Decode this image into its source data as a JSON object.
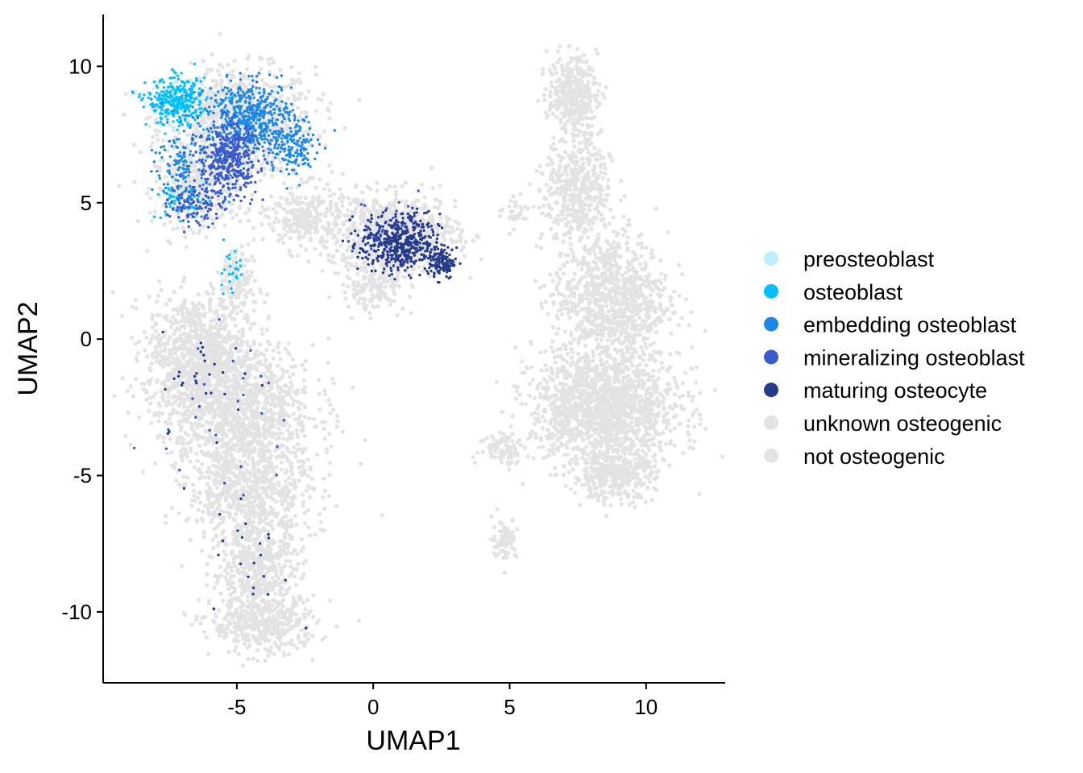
{
  "chart_data": {
    "type": "scatter",
    "title": "",
    "xlabel": "UMAP1",
    "ylabel": "UMAP2",
    "xlim": [
      -9.9,
      12.9
    ],
    "ylim": [
      -12.6,
      11.9
    ],
    "xticks": [
      -5,
      0,
      5,
      10
    ],
    "xtick_labels": [
      "-5",
      "0",
      "5",
      "10"
    ],
    "yticks": [
      10,
      5,
      0,
      -5,
      -10
    ],
    "ytick_labels": [
      "10",
      "5",
      "0",
      "-5",
      "-10"
    ],
    "grid": false,
    "legend_position": "right",
    "series": [
      {
        "name": "preosteoblast",
        "color": "#bfeeff",
        "clusters": [
          {
            "cx": -7.2,
            "cy": 8.6,
            "sx": 0.7,
            "sy": 0.6,
            "n": 40
          },
          {
            "cx": -5.0,
            "cy": 2.0,
            "sx": 0.4,
            "sy": 0.8,
            "n": 10
          }
        ]
      },
      {
        "name": "osteoblast",
        "color": "#00bfff",
        "clusters": [
          {
            "cx": -7.2,
            "cy": 8.7,
            "sx": 0.9,
            "sy": 0.7,
            "n": 320
          },
          {
            "cx": -7.0,
            "cy": 5.0,
            "sx": 0.8,
            "sy": 0.5,
            "n": 60
          },
          {
            "cx": -5.3,
            "cy": 2.5,
            "sx": 0.4,
            "sy": 0.8,
            "n": 25
          }
        ]
      },
      {
        "name": "embedding osteoblast",
        "color": "#1e88e5",
        "clusters": [
          {
            "cx": -4.5,
            "cy": 8.2,
            "sx": 1.3,
            "sy": 1.0,
            "n": 520
          },
          {
            "cx": -3.0,
            "cy": 7.0,
            "sx": 0.8,
            "sy": 0.9,
            "n": 160
          },
          {
            "cx": -7.0,
            "cy": 6.5,
            "sx": 0.8,
            "sy": 1.2,
            "n": 140
          }
        ]
      },
      {
        "name": "mineralizing osteoblast",
        "color": "#3a5bcc",
        "clusters": [
          {
            "cx": -5.3,
            "cy": 6.6,
            "sx": 0.9,
            "sy": 1.1,
            "n": 420
          },
          {
            "cx": -6.5,
            "cy": 5.0,
            "sx": 0.8,
            "sy": 0.7,
            "n": 120
          },
          {
            "cx": 0.5,
            "cy": 4.0,
            "sx": 1.0,
            "sy": 1.0,
            "n": 60
          },
          {
            "cx": -5.5,
            "cy": -3.0,
            "sx": 2.0,
            "sy": 2.5,
            "n": 25
          }
        ]
      },
      {
        "name": "maturing osteocyte",
        "color": "#263b8a",
        "clusters": [
          {
            "cx": 1.0,
            "cy": 3.5,
            "sx": 1.2,
            "sy": 0.9,
            "n": 480
          },
          {
            "cx": 2.5,
            "cy": 2.8,
            "sx": 0.4,
            "sy": 0.5,
            "n": 120
          },
          {
            "cx": -6.0,
            "cy": -1.5,
            "sx": 1.5,
            "sy": 1.5,
            "n": 30
          },
          {
            "cx": -4.5,
            "cy": -8.0,
            "sx": 1.2,
            "sy": 2.0,
            "n": 22
          }
        ]
      },
      {
        "name": "unknown osteogenic",
        "color": "#e3e3e3",
        "clusters": []
      },
      {
        "name": "not osteogenic",
        "color": "#e3e3e3",
        "clusters": []
      }
    ],
    "background_regions": [
      {
        "cx": -5.0,
        "cy": 8.0,
        "sx": 1.9,
        "sy": 1.3,
        "n": 900
      },
      {
        "cx": -6.5,
        "cy": 5.5,
        "sx": 1.0,
        "sy": 0.9,
        "n": 300
      },
      {
        "cx": -5.0,
        "cy": 2.0,
        "sx": 0.5,
        "sy": 1.2,
        "n": 160
      },
      {
        "cx": -6.5,
        "cy": -0.5,
        "sx": 1.2,
        "sy": 1.4,
        "n": 800
      },
      {
        "cx": -5.0,
        "cy": -2.5,
        "sx": 1.9,
        "sy": 1.6,
        "n": 1100
      },
      {
        "cx": -4.5,
        "cy": -5.5,
        "sx": 1.5,
        "sy": 1.4,
        "n": 700
      },
      {
        "cx": -4.3,
        "cy": -8.5,
        "sx": 1.1,
        "sy": 1.3,
        "n": 500
      },
      {
        "cx": -4.0,
        "cy": -10.5,
        "sx": 1.3,
        "sy": 0.7,
        "n": 350
      },
      {
        "cx": 0.7,
        "cy": 3.8,
        "sx": 1.6,
        "sy": 1.0,
        "n": 800
      },
      {
        "cx": -2.5,
        "cy": 4.5,
        "sx": 0.9,
        "sy": 0.8,
        "n": 250
      },
      {
        "cx": 0.0,
        "cy": 1.8,
        "sx": 0.8,
        "sy": 0.5,
        "n": 120
      },
      {
        "cx": 7.3,
        "cy": 9.0,
        "sx": 0.6,
        "sy": 0.9,
        "n": 350
      },
      {
        "cx": 7.5,
        "cy": 5.5,
        "sx": 0.8,
        "sy": 1.3,
        "n": 450
      },
      {
        "cx": 8.7,
        "cy": 1.5,
        "sx": 1.4,
        "sy": 1.6,
        "n": 900
      },
      {
        "cx": 8.5,
        "cy": -2.5,
        "sx": 1.8,
        "sy": 1.4,
        "n": 1500
      },
      {
        "cx": 8.8,
        "cy": -5.0,
        "sx": 1.0,
        "sy": 0.6,
        "n": 350
      },
      {
        "cx": 4.8,
        "cy": -4.0,
        "sx": 0.6,
        "sy": 0.4,
        "n": 80
      },
      {
        "cx": 4.8,
        "cy": -7.3,
        "sx": 0.3,
        "sy": 0.5,
        "n": 80
      },
      {
        "cx": 5.3,
        "cy": 4.7,
        "sx": 0.4,
        "sy": 0.3,
        "n": 30
      }
    ]
  }
}
